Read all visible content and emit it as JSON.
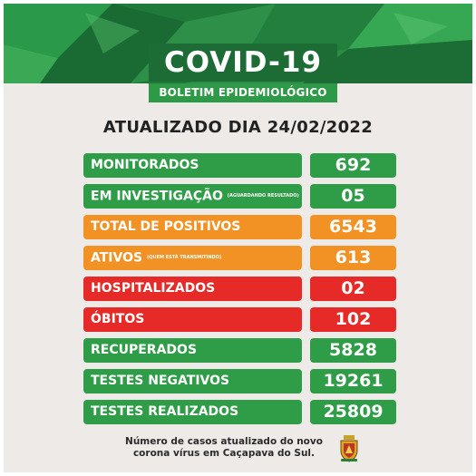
{
  "header": {
    "title": "COVID-19",
    "subtitle": "BOLETIM EPIDEMIOLÓGICO",
    "colors": {
      "dark_green": "#1d6c35",
      "green": "#2e9a47"
    }
  },
  "updated_text": "ATUALIZADO DIA 24/02/2022",
  "stats": [
    {
      "label": "MONITORADOS",
      "note": "",
      "value": "692",
      "color": "green"
    },
    {
      "label": "EM INVESTIGAÇÃO",
      "note": "(AGUARDANDO RESULTADO)",
      "value": "05",
      "color": "green"
    },
    {
      "label": "TOTAL DE POSITIVOS",
      "note": "",
      "value": "6543",
      "color": "orange"
    },
    {
      "label": "ATIVOS",
      "note": "(QUEM ESTÁ TRANSMITINDO)",
      "value": "613",
      "color": "orange"
    },
    {
      "label": "HOSPITALIZADOS",
      "note": "",
      "value": "02",
      "color": "red"
    },
    {
      "label": "ÓBITOS",
      "note": "",
      "value": "102",
      "color": "red"
    },
    {
      "label": "RECUPERADOS",
      "note": "",
      "value": "5828",
      "color": "green"
    },
    {
      "label": "TESTES NEGATIVOS",
      "note": "",
      "value": "19261",
      "color": "green"
    },
    {
      "label": "TESTES REALIZADOS",
      "note": "",
      "value": "25809",
      "color": "green"
    }
  ],
  "footer": {
    "line1": "Número de casos atualizado do novo",
    "line2": "corona vírus em Caçapava do Sul."
  },
  "crest_icon": "municipal-crest-icon"
}
